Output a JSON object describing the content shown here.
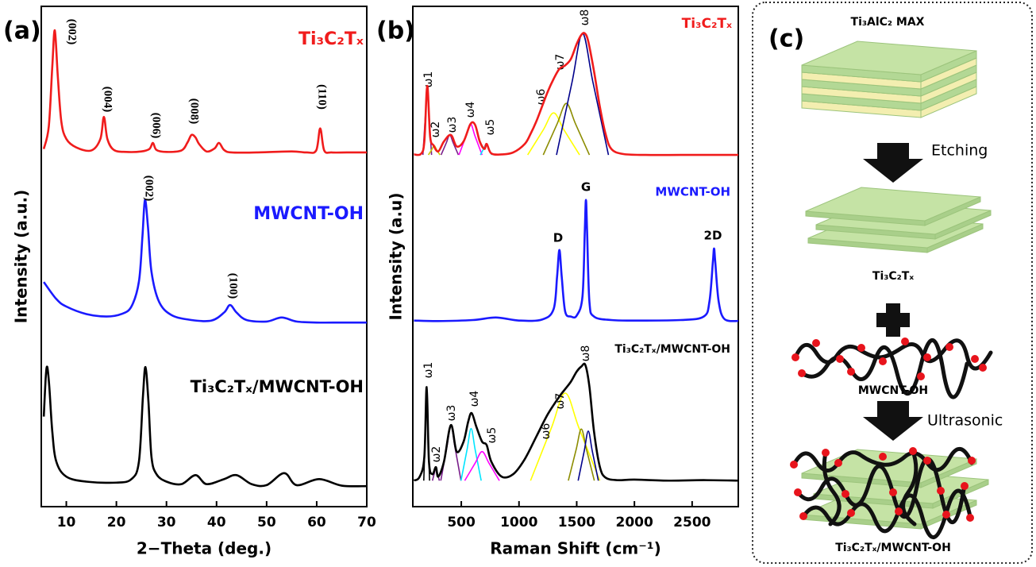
{
  "chart_data": [
    {
      "type": "line",
      "panel_label": "(a)",
      "xlabel": "2−Theta (deg.)",
      "ylabel": "Intensity (a.u.)",
      "xlim": [
        5,
        70
      ],
      "xticks": [
        10,
        20,
        30,
        40,
        50,
        60,
        70
      ],
      "ylim": [
        0,
        100
      ],
      "series": [
        {
          "name": "Ti₃C₂Tₓ",
          "color": "#f01c1c",
          "x": [
            5.5,
            6.5,
            7.2,
            7.7,
            8.3,
            9,
            10,
            12,
            15,
            16.8,
            17.5,
            18.2,
            19.5,
            22,
            25,
            26.6,
            27.3,
            28,
            30,
            33,
            34.2,
            35,
            35.8,
            36.5,
            38,
            39.6,
            40.5,
            41.5,
            43,
            48,
            55,
            58,
            59.9,
            60.7,
            61.5,
            63,
            66,
            70
          ],
          "values": [
            71.5,
            76,
            88,
            95.2,
            86,
            77,
            73.5,
            71.8,
            71.2,
            73.5,
            77.9,
            73.5,
            71.3,
            70.9,
            71,
            71.5,
            72.7,
            71.3,
            70.9,
            71.2,
            72.8,
            74.3,
            73.8,
            72.5,
            71,
            71.6,
            72.7,
            71.3,
            70.8,
            70.8,
            71,
            70.8,
            71.2,
            75.6,
            71.2,
            70.8,
            70.8,
            70.8
          ]
        },
        {
          "name": "MWCNT-OH",
          "color": "#1a1aff",
          "x": [
            5.5,
            8,
            10,
            14,
            18,
            21,
            23,
            24.5,
            25.2,
            25.7,
            26.3,
            27,
            28.5,
            31,
            35,
            39,
            41.5,
            42.7,
            44,
            46,
            50,
            53,
            56,
            60,
            65,
            70
          ],
          "values": [
            44.9,
            41.5,
            40,
            38.5,
            38,
            38.5,
            40,
            45,
            54,
            61.3,
            56,
            47,
            41,
            38.3,
            37.3,
            37.2,
            38.8,
            40.3,
            38.8,
            37.3,
            37,
            37.8,
            37,
            36.8,
            36.8,
            36.8
          ]
        },
        {
          "name": "Ti₃C₂Tₓ/MWCNT-OH",
          "color": "#000000",
          "x": [
            5.5,
            5.9,
            6.2,
            6.6,
            7.2,
            8,
            10,
            14,
            20,
            23,
            24.5,
            25.3,
            25.8,
            26.4,
            27,
            28,
            30,
            33,
            35.8,
            38,
            41.5,
            44,
            47,
            50,
            53.5,
            56,
            60.5,
            65,
            70
          ],
          "values": [
            18,
            26,
            27.9,
            24,
            15,
            9,
            6,
            5,
            4.8,
            5.5,
            9,
            22,
            27.9,
            21,
            10,
            6.5,
            5,
            4.5,
            6.3,
            4.5,
            5.5,
            6.3,
            4.5,
            4.3,
            6.7,
            4.3,
            5.5,
            4.2,
            4.1
          ]
        }
      ],
      "annotations": [
        "(002)",
        "(004)",
        "(006)",
        "(008)",
        "(110)",
        "(002)",
        "(100)"
      ]
    },
    {
      "type": "line",
      "panel_label": "(b)",
      "xlabel": "Raman Shift (cm⁻¹)",
      "ylabel": "Intensity (a.u)",
      "xlim": [
        80,
        2900
      ],
      "xticks": [
        500,
        1000,
        1500,
        2000,
        2500
      ],
      "ylim": [
        0,
        100
      ],
      "series": [
        {
          "name": "Ti₃C₂Tₓ",
          "color": "#f01c1c",
          "x": [
            90,
            150,
            180,
            205,
            230,
            260,
            300,
            350,
            410,
            460,
            520,
            580,
            620,
            660,
            700,
            720,
            760,
            850,
            950,
            1050,
            1100,
            1150,
            1200,
            1250,
            1300,
            1350,
            1400,
            1450,
            1500,
            1540,
            1570,
            1600,
            1650,
            1700,
            1750,
            1800,
            1900,
            2100,
            2400,
            2700,
            2900
          ],
          "values": [
            70.4,
            70.5,
            73,
            84.1,
            74,
            72.2,
            71,
            73,
            74.3,
            72,
            73,
            76.5,
            76.3,
            73,
            71.5,
            72.5,
            70.6,
            70.4,
            70.8,
            72.5,
            74.5,
            77,
            80,
            83,
            85.5,
            87.5,
            88.2,
            89.5,
            92.5,
            94.3,
            94.6,
            93,
            87,
            80,
            74.5,
            71.5,
            70.5,
            70.3,
            70.3,
            70.3,
            70.3
          ],
          "components": [
            {
              "label": "ω1",
              "color": "#7a1f8c",
              "x": [
                167.5,
                190,
                205,
                220,
                242.5
              ],
              "values": [
                70.3,
                78.6,
                84.1,
                78.6,
                70.3
              ]
            },
            {
              "label": "ω2",
              "color": "#c8c800",
              "x": [
                215,
                245,
                265,
                285,
                315
              ],
              "values": [
                70.3,
                71.4,
                72.2,
                71.4,
                70.3
              ]
            },
            {
              "label": "ω3",
              "color": "#7a1f8c",
              "x": [
                325,
                370,
                400,
                430,
                475
              ],
              "values": [
                70.3,
                72.7,
                74.3,
                72.7,
                70.3
              ]
            },
            {
              "label": "ω4",
              "color": "#ff00ff",
              "x": [
                480,
                540,
                580,
                620,
                680
              ],
              "values": [
                70.3,
                74,
                76.5,
                74,
                70.3
              ]
            },
            {
              "label": "ω5",
              "color": "#00e5ff",
              "x": [
                665,
                695,
                715,
                735,
                765
              ],
              "values": [
                70.3,
                71.6,
                72.5,
                71.6,
                70.3
              ]
            },
            {
              "label": "ω6",
              "color": "#ffff00",
              "x": [
                1075,
                1210,
                1300,
                1390,
                1525
              ],
              "values": [
                70.3,
                75.3,
                78.7,
                75.3,
                70.3
              ]
            },
            {
              "label": "ω7",
              "color": "#8c8c00",
              "x": [
                1210,
                1330,
                1410,
                1490,
                1610
              ],
              "values": [
                70.3,
                76.5,
                80.6,
                76.5,
                70.3
              ]
            },
            {
              "label": "ω8",
              "color": "#00008b",
              "x": [
                1325,
                1460,
                1550,
                1640,
                1775
              ],
              "values": [
                70.3,
                84.9,
                94.6,
                84.9,
                70.3
              ]
            }
          ]
        },
        {
          "name": "MWCNT-OH",
          "color": "#1a1aff",
          "x": [
            90,
            300,
            600,
            800,
            1000,
            1200,
            1300,
            1330,
            1350,
            1370,
            1400,
            1450,
            1500,
            1550,
            1570,
            1580,
            1590,
            1610,
            1650,
            1800,
            2000,
            2400,
            2600,
            2650,
            2680,
            2690,
            2700,
            2730,
            2780,
            2900
          ],
          "values": [
            37.2,
            37.1,
            37.3,
            37.8,
            37.2,
            37.4,
            39.5,
            46,
            51.3,
            46,
            39,
            38,
            38.2,
            42,
            55,
            61.3,
            55,
            41,
            38,
            37.3,
            37.2,
            37.3,
            38,
            41,
            49,
            51.6,
            49,
            41,
            37.5,
            37.1
          ]
        },
        {
          "name": "Ti₃C₂Tₓ/MWCNT-OH",
          "color": "#000000",
          "x": [
            90,
            140,
            180,
            200,
            220,
            250,
            280,
            300,
            350,
            410,
            460,
            520,
            560,
            590,
            630,
            680,
            720,
            760,
            850,
            950,
            1050,
            1150,
            1250,
            1350,
            1400,
            1450,
            1500,
            1540,
            1575,
            1610,
            1650,
            1700,
            1750,
            1850,
            2000,
            2300,
            2600,
            2900
          ],
          "values": [
            5.2,
            6,
            10,
            23.9,
            9,
            6.5,
            7.9,
            6,
            9,
            16.3,
            11,
            13,
            17,
            18.7,
            16,
            13,
            12.3,
            9,
            6,
            6.5,
            9.5,
            14,
            18.5,
            22,
            23.5,
            25,
            27,
            28,
            28.3,
            24,
            15,
            8,
            5.8,
            5.3,
            5.4,
            5.2,
            5.3,
            5.2
          ],
          "components": [
            {
              "label": "ω1",
              "color": "#000000",
              "x": [
                175,
                190,
                200,
                210,
                225
              ],
              "values": [
                5.2,
                16.4,
                23.9,
                16.4,
                5.2
              ]
            },
            {
              "label": "ω2",
              "color": "#7a1f8c",
              "x": [
                250,
                268,
                280,
                292,
                310
              ],
              "values": [
                5.2,
                6.8,
                7.9,
                6.8,
                5.2
              ]
            },
            {
              "label": "ω3",
              "color": "#7a1f8c",
              "x": [
                322.5,
                375,
                410,
                445,
                497.5
              ],
              "values": [
                5.2,
                11.9,
                16.3,
                11.9,
                5.2
              ]
            },
            {
              "label": "ω4",
              "color": "#00e5ff",
              "x": [
                497.5,
                550,
                585,
                620,
                672.5
              ],
              "values": [
                5.2,
                11.4,
                15.6,
                11.4,
                5.2
              ]
            },
            {
              "label": "ω5",
              "color": "#ff00ff",
              "x": [
                530,
                620,
                680,
                740,
                830
              ],
              "values": [
                5.2,
                8.7,
                11,
                8.7,
                5.2
              ]
            },
            {
              "label": "ω6",
              "color": "#ffff00",
              "x": [
                1100,
                1280,
                1400,
                1520,
                1700
              ],
              "values": [
                5.2,
                15.7,
                22.7,
                15.7,
                5.2
              ]
            },
            {
              "label": "ω7",
              "color": "#8c8c00",
              "x": [
                1427.5,
                1495,
                1540,
                1585,
                1652.5
              ],
              "values": [
                5.2,
                11.4,
                15.5,
                11.4,
                5.2
              ]
            },
            {
              "label": "ω8",
              "color": "#00008b",
              "x": [
                1512.5,
                1565,
                1600,
                1635,
                1687.5
              ],
              "values": [
                5.2,
                11.1,
                15.1,
                11.1,
                5.2
              ]
            }
          ]
        }
      ],
      "annotations": [
        "D",
        "G",
        "2D"
      ]
    }
  ],
  "diagram": {
    "panel_label": "(c)",
    "labels": {
      "max": "Ti₃AlC₂ MAX",
      "mxene": "Ti₃C₂Tₓ",
      "cnt": "MWCNT-OH",
      "composite": "Ti₃C₂Tₓ/MWCNT-OH"
    },
    "steps": [
      "Etching",
      "Ultrasonic"
    ]
  }
}
